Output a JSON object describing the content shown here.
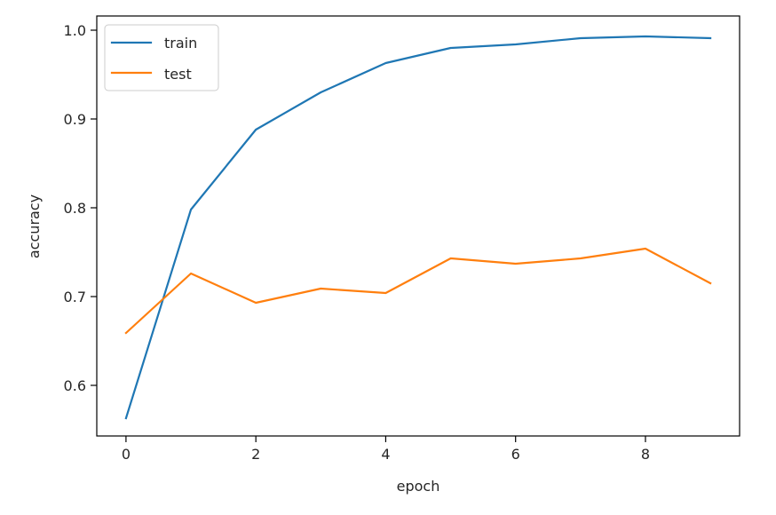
{
  "chart_data": {
    "type": "line",
    "title": "",
    "xlabel": "epoch",
    "ylabel": "accuracy",
    "xlim": [
      -0.45,
      9.45
    ],
    "ylim": [
      0.543,
      1.016
    ],
    "xticks": [
      0,
      2,
      4,
      6,
      8
    ],
    "xtick_labels": [
      "0",
      "2",
      "4",
      "6",
      "8"
    ],
    "yticks": [
      0.6,
      0.7,
      0.8,
      0.9,
      1.0
    ],
    "ytick_labels": [
      "0.6",
      "0.7",
      "0.8",
      "0.9",
      "1.0"
    ],
    "grid": false,
    "legend_position": "upper-left",
    "x": [
      0,
      1,
      2,
      3,
      4,
      5,
      6,
      7,
      8,
      9
    ],
    "series": [
      {
        "name": "train",
        "color": "#1f77b4",
        "values": [
          0.563,
          0.798,
          0.888,
          0.93,
          0.963,
          0.98,
          0.984,
          0.991,
          0.993,
          0.991
        ]
      },
      {
        "name": "test",
        "color": "#ff7f0e",
        "values": [
          0.659,
          0.726,
          0.693,
          0.709,
          0.704,
          0.743,
          0.737,
          0.743,
          0.754,
          0.715
        ]
      }
    ]
  }
}
